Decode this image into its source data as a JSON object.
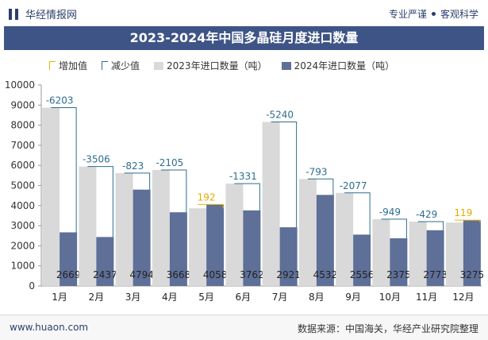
{
  "header": {
    "brand": "华经情报网",
    "tag_left": "专业严谨",
    "tag_right": "客观科学"
  },
  "footer": {
    "site": "www.huaon.com",
    "source": "数据来源：中国海关，华经产业研究院整理"
  },
  "colors": {
    "bar_2023": "#d9d9d9",
    "bar_2024": "#5e6f98",
    "increase": "#e6b800",
    "decrease": "#2e6d8e",
    "title_bg": "#3f5486"
  },
  "chart_data": {
    "type": "bar",
    "title": "2023-2024年中国多晶硅月度进口数量",
    "legend": [
      "增加值",
      "减少值",
      "2023年进口数量（吨）",
      "2024年进口数量（吨）"
    ],
    "categories": [
      "1月",
      "2月",
      "3月",
      "4月",
      "5月",
      "6月",
      "7月",
      "8月",
      "9月",
      "10月",
      "11月",
      "12月"
    ],
    "series": [
      {
        "name": "2023年进口数量（吨）",
        "values": [
          8872,
          5943,
          5617,
          5773,
          3866,
          5093,
          8161,
          5325,
          4633,
          3324,
          3202,
          3156
        ]
      },
      {
        "name": "2024年进口数量（吨）",
        "values": [
          2669,
          2437,
          4794,
          3668,
          4058,
          3762,
          2921,
          4532,
          2556,
          2375,
          2773,
          3275
        ]
      }
    ],
    "change": [
      "-6203",
      "-3506",
      "-823",
      "-2105",
      "192",
      "-1331",
      "-5240",
      "-793",
      "-2077",
      "-949",
      "-429",
      "119"
    ],
    "ylim": [
      0,
      10000
    ],
    "yticks": [
      0,
      1000,
      2000,
      3000,
      4000,
      5000,
      6000,
      7000,
      8000,
      9000,
      10000
    ],
    "grid": false,
    "legend_position": "top-left"
  }
}
